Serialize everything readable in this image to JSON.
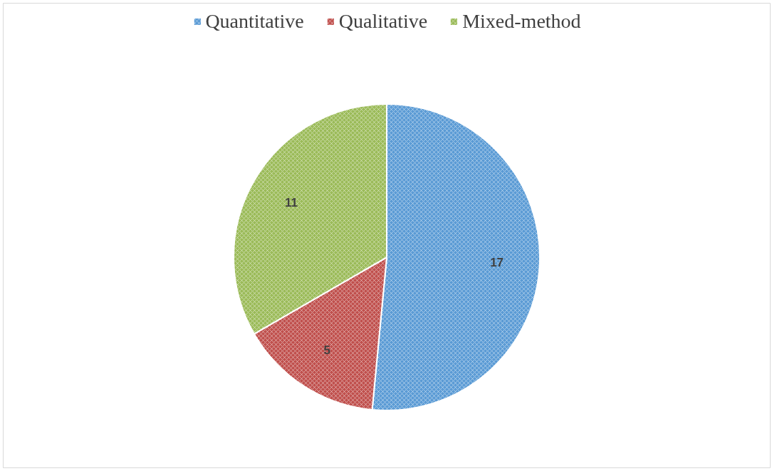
{
  "chart_data": {
    "type": "pie",
    "categories": [
      "Quantitative",
      "Qualitative",
      "Mixed-method"
    ],
    "values": [
      17,
      5,
      11
    ],
    "colors": [
      "#5b9bd5",
      "#c0504d",
      "#9bbb59"
    ],
    "data_labels": true,
    "legend": "top"
  }
}
